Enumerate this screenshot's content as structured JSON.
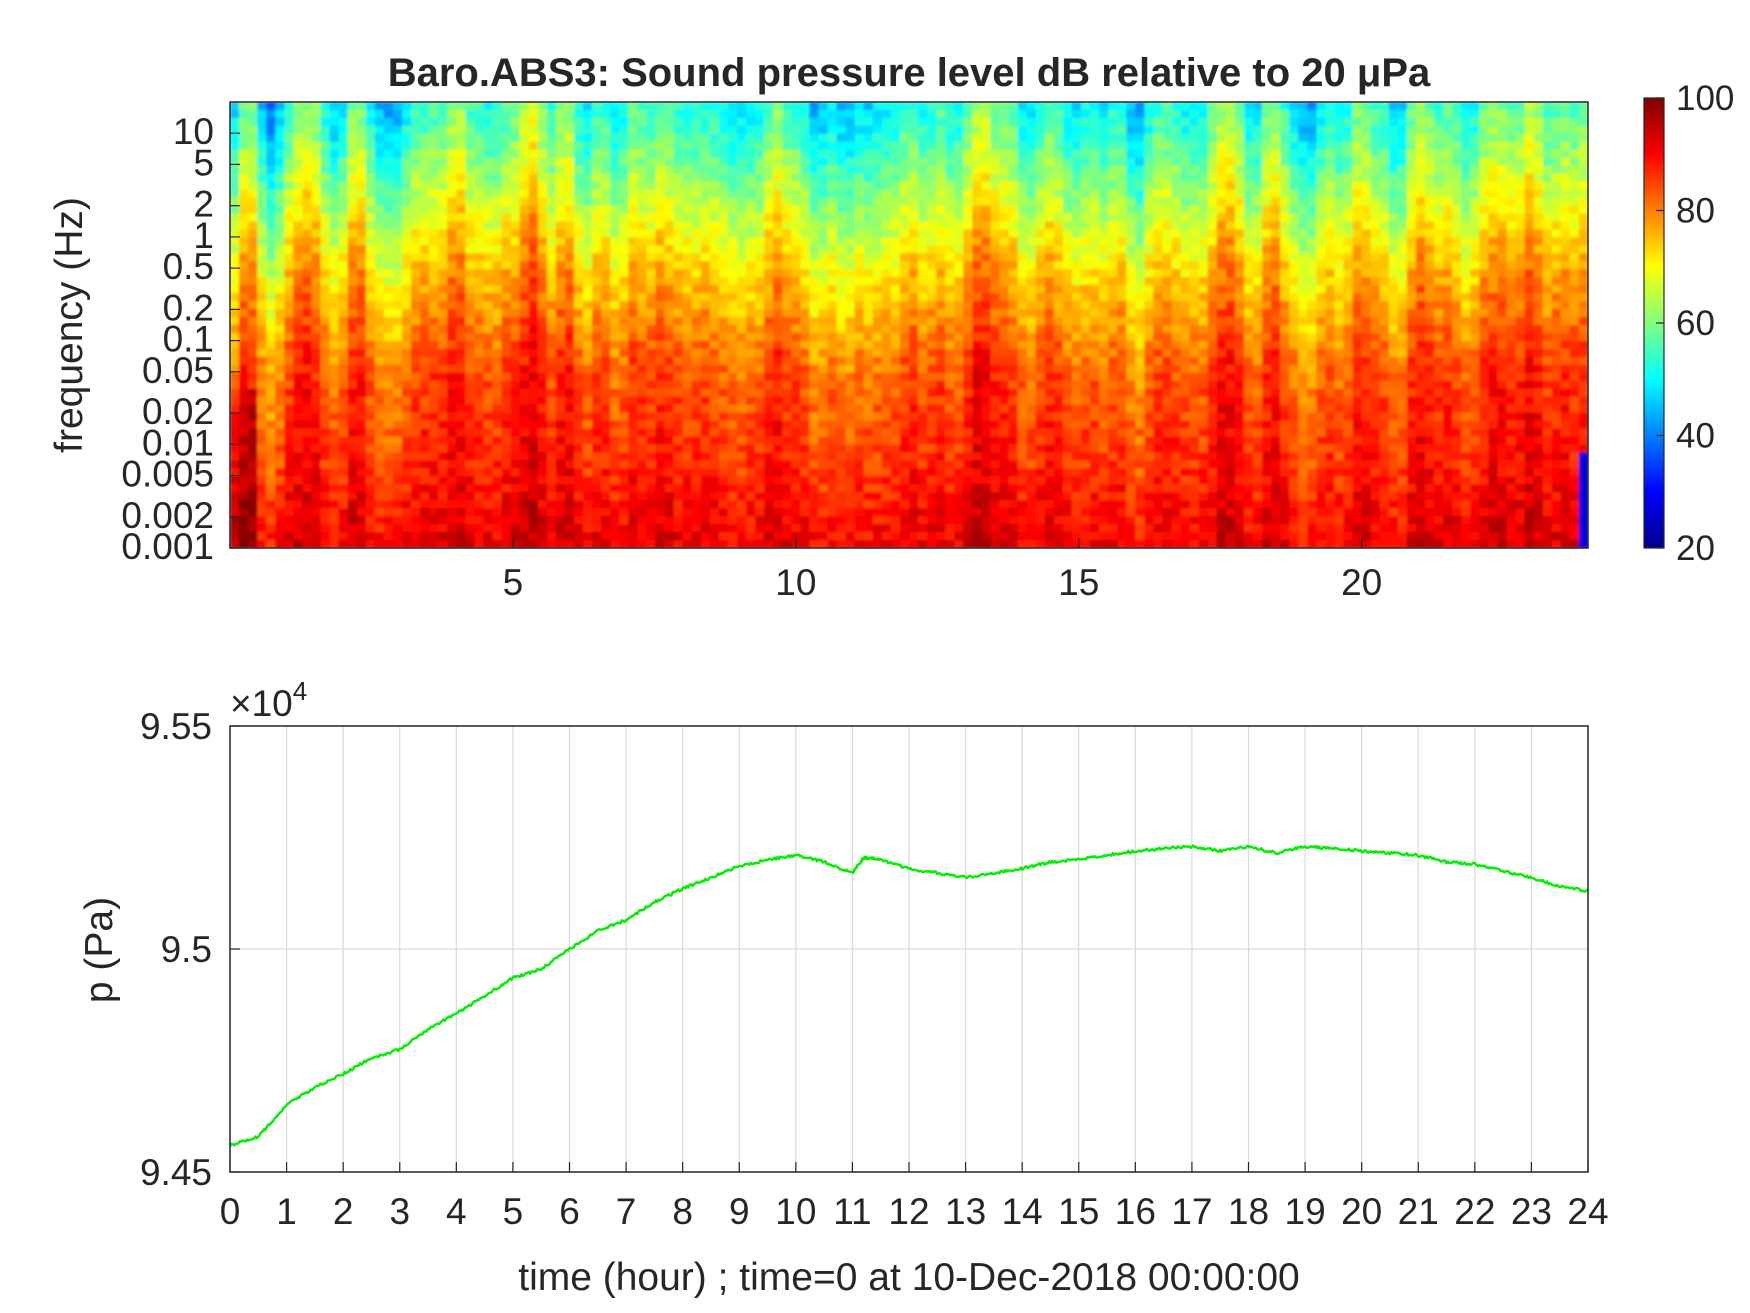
{
  "chart_data": [
    {
      "type": "heatmap",
      "title": "Baro.ABS3: Sound pressure level dB relative to 20 μPa",
      "xlabel": "",
      "ylabel": "frequency (Hz)",
      "x_ticks": [
        "5",
        "10",
        "15",
        "20"
      ],
      "x_tick_values": [
        5,
        10,
        15,
        20
      ],
      "xlim": [
        0,
        24
      ],
      "y_scale": "log",
      "y_ticks": [
        "10",
        "5",
        "2",
        "1",
        "0.5",
        "0.2",
        "0.1",
        "0.05",
        "0.02",
        "0.01",
        "0.005",
        "0.002",
        "0.001"
      ],
      "y_tick_values": [
        10,
        5,
        2,
        1,
        0.5,
        0.2,
        0.1,
        0.05,
        0.02,
        0.01,
        0.005,
        0.002,
        0.001
      ],
      "ylim": [
        0.001,
        20
      ],
      "colorbar": {
        "ticks": [
          "100",
          "80",
          "60",
          "40",
          "20"
        ],
        "tick_values": [
          100,
          80,
          60,
          40,
          20
        ],
        "range": [
          20,
          100
        ],
        "colormap": "jet"
      },
      "approx_level_by_frequency_hz": [
        {
          "frequency": 0.001,
          "level_db": 92
        },
        {
          "frequency": 0.005,
          "level_db": 88
        },
        {
          "frequency": 0.05,
          "level_db": 84
        },
        {
          "frequency": 0.5,
          "level_db": 74
        },
        {
          "frequency": 2,
          "level_db": 66
        },
        {
          "frequency": 10,
          "level_db": 56
        },
        {
          "frequency": 20,
          "level_db": 53
        }
      ]
    },
    {
      "type": "line",
      "title": "",
      "xlabel": "time (hour) ; time=0 at 10-Dec-2018 00:00:00",
      "ylabel": "p (Pa)",
      "y_exponent_label": "×10",
      "y_exponent_power": "4",
      "x_ticks": [
        "0",
        "1",
        "2",
        "3",
        "4",
        "5",
        "6",
        "7",
        "8",
        "9",
        "10",
        "11",
        "12",
        "13",
        "14",
        "15",
        "16",
        "17",
        "18",
        "19",
        "20",
        "21",
        "22",
        "23",
        "24"
      ],
      "y_ticks": [
        "9.55",
        "9.5",
        "9.45"
      ],
      "y_tick_values": [
        95500,
        95000,
        94500
      ],
      "xlim": [
        0,
        24
      ],
      "ylim": [
        94500,
        95500
      ],
      "grid": true,
      "line_color": "#00ee00",
      "x": [
        0,
        0.5,
        1,
        1.5,
        2,
        2.5,
        3,
        3.5,
        4,
        4.5,
        5,
        5.5,
        6,
        6.5,
        7,
        7.5,
        8,
        8.5,
        9,
        9.5,
        10,
        10.5,
        11,
        11.2,
        11.5,
        12,
        12.5,
        13,
        13.5,
        14,
        14.5,
        15,
        15.5,
        16,
        16.5,
        17,
        17.5,
        18,
        18.5,
        19,
        19.5,
        20,
        20.5,
        21,
        21.5,
        22,
        22.5,
        23,
        23.5,
        24
      ],
      "y": [
        94560,
        94580,
        94650,
        94690,
        94720,
        94755,
        94775,
        94820,
        94855,
        94895,
        94935,
        94955,
        95000,
        95040,
        95065,
        95105,
        95135,
        95160,
        95185,
        95200,
        95210,
        95195,
        95170,
        95205,
        95200,
        95180,
        95170,
        95160,
        95170,
        95180,
        95195,
        95200,
        95210,
        95220,
        95225,
        95230,
        95220,
        95230,
        95215,
        95230,
        95225,
        95220,
        95215,
        95210,
        95195,
        95190,
        95175,
        95160,
        95140,
        95130
      ]
    }
  ]
}
